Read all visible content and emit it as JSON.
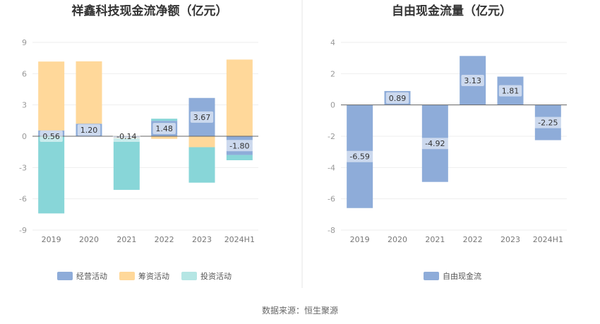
{
  "colors": {
    "operating": "#8eacd9",
    "financing": "#ffd89a",
    "investing": "#88d6d8",
    "fcf": "#8eacd9",
    "legend_investing": "#b5e6e4",
    "grid": "#eeeeee",
    "divider": "#e6e6e6"
  },
  "source_text": "数据来源：恒生聚源",
  "chart_data": [
    {
      "type": "bar",
      "stacked": true,
      "title": "祥鑫科技现金流净额（亿元）",
      "categories": [
        "2019",
        "2020",
        "2021",
        "2022",
        "2023",
        "2024H1"
      ],
      "ylim": [
        -9,
        9
      ],
      "yticks": [
        9,
        6,
        3,
        0,
        -3,
        -6,
        -9
      ],
      "grid": true,
      "legend_position": "bottom",
      "series": [
        {
          "name": "经营活动",
          "color_key": "operating",
          "values": [
            0.56,
            1.2,
            -0.14,
            1.48,
            3.67,
            -1.8
          ]
        },
        {
          "name": "筹资活动",
          "color_key": "financing",
          "values": [
            6.6,
            5.98,
            -0.05,
            -0.25,
            -1.05,
            7.35
          ]
        },
        {
          "name": "投资活动",
          "color_key": "investing",
          "values": [
            -7.4,
            -0.03,
            -4.95,
            0.2,
            -3.4,
            -0.5
          ]
        }
      ],
      "data_labels": [
        {
          "series": 0,
          "values": [
            "0.56",
            "1.20",
            "-0.14",
            "1.48",
            "3.67",
            "-1.80"
          ]
        }
      ]
    },
    {
      "type": "bar",
      "title": "自由现金流量（亿元）",
      "categories": [
        "2019",
        "2020",
        "2021",
        "2022",
        "2023",
        "2024H1"
      ],
      "ylim": [
        -8,
        4
      ],
      "yticks": [
        4,
        2,
        0,
        -2,
        -4,
        -6,
        -8
      ],
      "grid": true,
      "legend_position": "bottom",
      "series": [
        {
          "name": "自由现金流",
          "color_key": "fcf",
          "values": [
            -6.59,
            0.89,
            -4.92,
            3.13,
            1.81,
            -2.25
          ]
        }
      ],
      "data_labels": [
        {
          "series": 0,
          "values": [
            "-6.59",
            "0.89",
            "-4.92",
            "3.13",
            "1.81",
            "-2.25"
          ]
        }
      ]
    }
  ]
}
